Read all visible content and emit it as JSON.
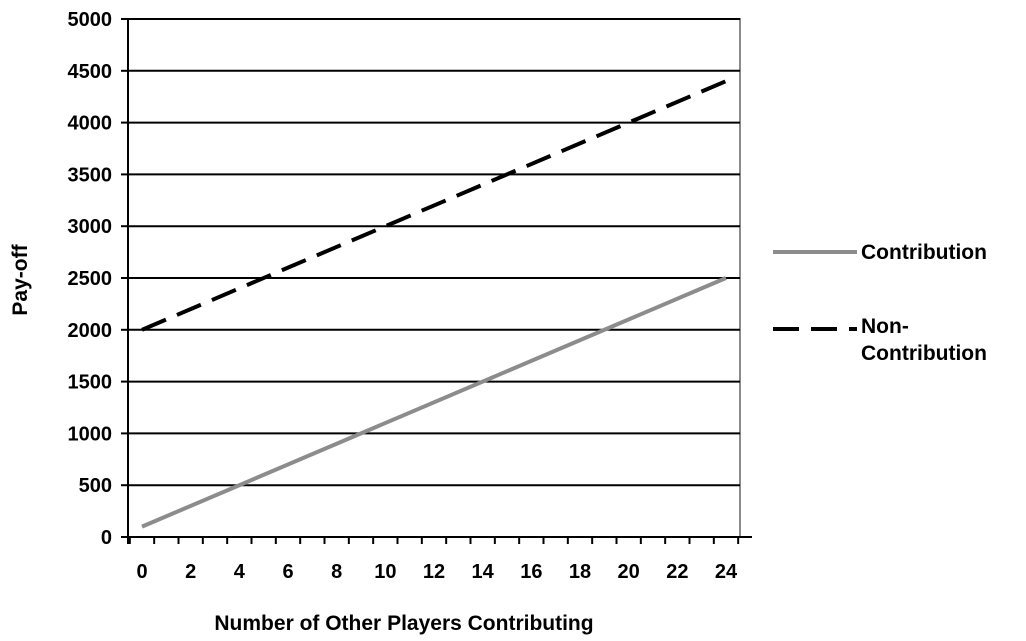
{
  "chart_data": {
    "type": "line",
    "title": "",
    "xlabel": "Number of Other Players Contributing",
    "ylabel": "Pay-off",
    "xlim": [
      0,
      24
    ],
    "ylim": [
      0,
      5000
    ],
    "x_ticks": [
      0,
      2,
      4,
      6,
      8,
      10,
      12,
      14,
      16,
      18,
      20,
      22,
      24
    ],
    "x_tick_labels": [
      "0",
      "2",
      "4",
      "6",
      "8",
      "10",
      "12",
      "14",
      "16",
      "18",
      "20",
      "22",
      "24"
    ],
    "y_ticks": [
      0,
      500,
      1000,
      1500,
      2000,
      2500,
      3000,
      3500,
      4000,
      4500,
      5000
    ],
    "y_tick_labels": [
      "0",
      "500",
      "1000",
      "1500",
      "2000",
      "2500",
      "3000",
      "3500",
      "4000",
      "4500",
      "5000"
    ],
    "grid": "horizontal",
    "legend_position": "right",
    "series": [
      {
        "name": "Contribution",
        "style": "solid",
        "color": "#8c8c8c",
        "x": [
          0,
          24
        ],
        "values": [
          100,
          2500
        ]
      },
      {
        "name": "Non-Contribution",
        "name_lines": [
          "Non-",
          "Contribution"
        ],
        "style": "dashed",
        "color": "#000000",
        "x": [
          0,
          24
        ],
        "values": [
          2000,
          4400
        ]
      }
    ]
  }
}
